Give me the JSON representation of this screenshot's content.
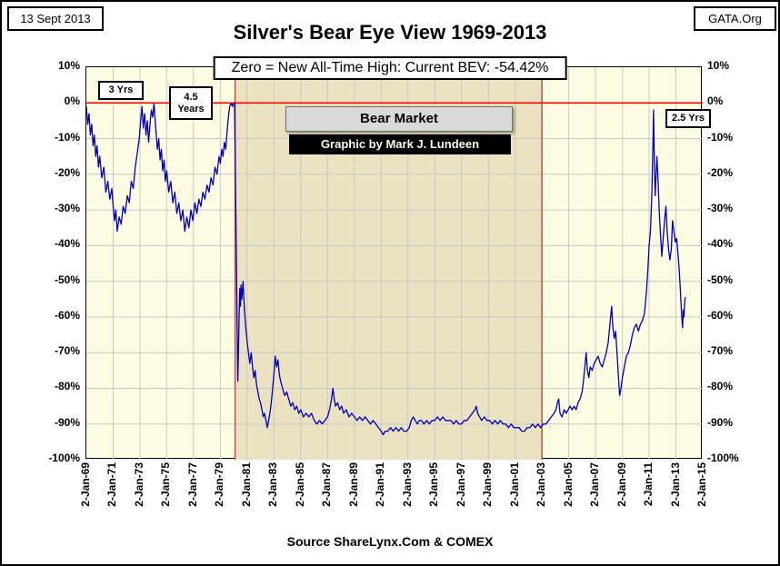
{
  "header": {
    "date_stamp": "13 Sept 2013",
    "org": "GATA.Org",
    "title": "Silver's Bear Eye View 1969-2013",
    "subtitle": "Zero = New All-Time High: Current BEV: -54.42%"
  },
  "annotations": {
    "three_yrs": "3 Yrs",
    "four_half_years": "4.5 Years",
    "bear_market": "Bear Market",
    "credit": "Graphic by Mark J. Lundeen",
    "two_half_yrs": "2.5 Yrs"
  },
  "footer": {
    "source": "Source ShareLynx.Com & COMEX"
  },
  "chart_data": {
    "type": "line",
    "title": "Silver's Bear Eye View 1969-2013",
    "subtitle": "Zero = New All-Time High: Current BEV: -54.42%",
    "series_name": "Silver Bear's Eye View (% below all-time high)",
    "x_unit": "date (decimal year)",
    "y_unit": "percent below all-time high",
    "xlim": [
      1969,
      2015
    ],
    "ylim": [
      -100,
      10
    ],
    "grid": true,
    "current_bev": -54.42,
    "zero_line_value": 0,
    "bear_market_band": {
      "from_year": 1980.1,
      "to_year": 2003.0
    },
    "x_tick_years": [
      1969,
      1971,
      1973,
      1975,
      1977,
      1979,
      1981,
      1983,
      1985,
      1987,
      1989,
      1991,
      1993,
      1995,
      1997,
      1999,
      2001,
      2003,
      2005,
      2007,
      2009,
      2011,
      2013,
      2015
    ],
    "x_tick_labels": [
      "2-Jan-69",
      "2-Jan-71",
      "2-Jan-73",
      "2-Jan-75",
      "2-Jan-77",
      "2-Jan-79",
      "2-Jan-81",
      "2-Jan-83",
      "2-Jan-85",
      "2-Jan-87",
      "2-Jan-89",
      "2-Jan-91",
      "2-Jan-93",
      "2-Jan-95",
      "2-Jan-97",
      "2-Jan-99",
      "2-Jan-01",
      "2-Jan-03",
      "2-Jan-05",
      "2-Jan-07",
      "2-Jan-09",
      "2-Jan-11",
      "2-Jan-13",
      "2-Jan-15"
    ],
    "y_ticks": [
      10,
      0,
      -10,
      -20,
      -30,
      -40,
      -50,
      -60,
      -70,
      -80,
      -90,
      -100
    ],
    "y_tick_labels": [
      "10%",
      "0%",
      "-10%",
      "-20%",
      "-30%",
      "-40%",
      "-50%",
      "-60%",
      "-70%",
      "-80%",
      "-90%",
      "-100%"
    ],
    "colors": {
      "line": "#0000B8",
      "zero_line": "#FF0000",
      "plot_bg": "#FDFCE2",
      "band_bg": "#EAE2C0",
      "band_border": "#C0504D",
      "grid": "#C8C8C8"
    },
    "points": [
      [
        1969.0,
        -1
      ],
      [
        1969.1,
        -6
      ],
      [
        1969.2,
        -3
      ],
      [
        1969.3,
        -9
      ],
      [
        1969.4,
        -6
      ],
      [
        1969.5,
        -12
      ],
      [
        1969.6,
        -9
      ],
      [
        1969.7,
        -15
      ],
      [
        1969.8,
        -12
      ],
      [
        1969.9,
        -18
      ],
      [
        1970.0,
        -15
      ],
      [
        1970.15,
        -21
      ],
      [
        1970.3,
        -18
      ],
      [
        1970.45,
        -25
      ],
      [
        1970.6,
        -22
      ],
      [
        1970.75,
        -27
      ],
      [
        1970.9,
        -24
      ],
      [
        1971.0,
        -29
      ],
      [
        1971.1,
        -33
      ],
      [
        1971.2,
        -30
      ],
      [
        1971.3,
        -36
      ],
      [
        1971.45,
        -32
      ],
      [
        1971.6,
        -34
      ],
      [
        1971.75,
        -29
      ],
      [
        1971.9,
        -31
      ],
      [
        1972.05,
        -26
      ],
      [
        1972.2,
        -28
      ],
      [
        1972.35,
        -22
      ],
      [
        1972.5,
        -24
      ],
      [
        1972.65,
        -18
      ],
      [
        1972.8,
        -14
      ],
      [
        1972.95,
        -10
      ],
      [
        1973.05,
        -5
      ],
      [
        1973.15,
        -1
      ],
      [
        1973.25,
        -7
      ],
      [
        1973.35,
        -3
      ],
      [
        1973.45,
        -9
      ],
      [
        1973.55,
        -5
      ],
      [
        1973.65,
        -11
      ],
      [
        1973.75,
        -6
      ],
      [
        1973.85,
        -2
      ],
      [
        1973.95,
        -4
      ],
      [
        1974.05,
        0
      ],
      [
        1974.1,
        -3
      ],
      [
        1974.2,
        -8
      ],
      [
        1974.3,
        -13
      ],
      [
        1974.4,
        -10
      ],
      [
        1974.5,
        -16
      ],
      [
        1974.6,
        -13
      ],
      [
        1974.7,
        -19
      ],
      [
        1974.8,
        -16
      ],
      [
        1974.9,
        -22
      ],
      [
        1975.0,
        -19
      ],
      [
        1975.15,
        -25
      ],
      [
        1975.3,
        -22
      ],
      [
        1975.45,
        -28
      ],
      [
        1975.6,
        -25
      ],
      [
        1975.75,
        -31
      ],
      [
        1975.9,
        -28
      ],
      [
        1976.05,
        -33
      ],
      [
        1976.2,
        -30
      ],
      [
        1976.35,
        -36
      ],
      [
        1976.5,
        -32
      ],
      [
        1976.65,
        -35
      ],
      [
        1976.8,
        -30
      ],
      [
        1976.95,
        -33
      ],
      [
        1977.1,
        -28
      ],
      [
        1977.25,
        -31
      ],
      [
        1977.4,
        -27
      ],
      [
        1977.55,
        -29
      ],
      [
        1977.7,
        -25
      ],
      [
        1977.85,
        -27
      ],
      [
        1978.0,
        -23
      ],
      [
        1978.15,
        -25
      ],
      [
        1978.3,
        -21
      ],
      [
        1978.45,
        -23
      ],
      [
        1978.6,
        -18
      ],
      [
        1978.75,
        -20
      ],
      [
        1978.9,
        -15
      ],
      [
        1979.0,
        -17
      ],
      [
        1979.1,
        -13
      ],
      [
        1979.2,
        -15
      ],
      [
        1979.3,
        -11
      ],
      [
        1979.4,
        -13
      ],
      [
        1979.5,
        -8
      ],
      [
        1979.6,
        -4
      ],
      [
        1979.7,
        -1
      ],
      [
        1979.8,
        0
      ],
      [
        1979.9,
        -1
      ],
      [
        1980.0,
        0
      ],
      [
        1980.05,
        0
      ],
      [
        1980.1,
        -12
      ],
      [
        1980.15,
        -28
      ],
      [
        1980.2,
        -45
      ],
      [
        1980.25,
        -62
      ],
      [
        1980.3,
        -78
      ],
      [
        1980.35,
        -70
      ],
      [
        1980.4,
        -60
      ],
      [
        1980.45,
        -52
      ],
      [
        1980.5,
        -57
      ],
      [
        1980.55,
        -51
      ],
      [
        1980.6,
        -55
      ],
      [
        1980.7,
        -50
      ],
      [
        1980.8,
        -58
      ],
      [
        1980.9,
        -63
      ],
      [
        1981.0,
        -67
      ],
      [
        1981.1,
        -70
      ],
      [
        1981.2,
        -73
      ],
      [
        1981.3,
        -70
      ],
      [
        1981.4,
        -74
      ],
      [
        1981.5,
        -77
      ],
      [
        1981.6,
        -75
      ],
      [
        1981.7,
        -79
      ],
      [
        1981.8,
        -81
      ],
      [
        1981.9,
        -83
      ],
      [
        1982.0,
        -84
      ],
      [
        1982.1,
        -86
      ],
      [
        1982.2,
        -88
      ],
      [
        1982.3,
        -87
      ],
      [
        1982.4,
        -89
      ],
      [
        1982.5,
        -91
      ],
      [
        1982.6,
        -89
      ],
      [
        1982.7,
        -87
      ],
      [
        1982.8,
        -84
      ],
      [
        1982.9,
        -80
      ],
      [
        1983.0,
        -76
      ],
      [
        1983.1,
        -71
      ],
      [
        1983.2,
        -74
      ],
      [
        1983.3,
        -72
      ],
      [
        1983.4,
        -76
      ],
      [
        1983.5,
        -78
      ],
      [
        1983.65,
        -80
      ],
      [
        1983.8,
        -82
      ],
      [
        1983.95,
        -81
      ],
      [
        1984.1,
        -83
      ],
      [
        1984.25,
        -85
      ],
      [
        1984.4,
        -84
      ],
      [
        1984.55,
        -86
      ],
      [
        1984.7,
        -85
      ],
      [
        1984.85,
        -87
      ],
      [
        1985.0,
        -86
      ],
      [
        1985.2,
        -88
      ],
      [
        1985.4,
        -87
      ],
      [
        1985.6,
        -88
      ],
      [
        1985.8,
        -87
      ],
      [
        1986.0,
        -89
      ],
      [
        1986.2,
        -90
      ],
      [
        1986.4,
        -89
      ],
      [
        1986.6,
        -90
      ],
      [
        1986.8,
        -89
      ],
      [
        1987.0,
        -88
      ],
      [
        1987.15,
        -86
      ],
      [
        1987.3,
        -83
      ],
      [
        1987.4,
        -80
      ],
      [
        1987.5,
        -83
      ],
      [
        1987.6,
        -85
      ],
      [
        1987.75,
        -84
      ],
      [
        1987.9,
        -86
      ],
      [
        1988.05,
        -85
      ],
      [
        1988.2,
        -87
      ],
      [
        1988.4,
        -86
      ],
      [
        1988.6,
        -88
      ],
      [
        1988.8,
        -87
      ],
      [
        1989.0,
        -88
      ],
      [
        1989.2,
        -89
      ],
      [
        1989.4,
        -88
      ],
      [
        1989.6,
        -89
      ],
      [
        1989.8,
        -88
      ],
      [
        1990.0,
        -89
      ],
      [
        1990.2,
        -90
      ],
      [
        1990.4,
        -89
      ],
      [
        1990.6,
        -90
      ],
      [
        1990.8,
        -91
      ],
      [
        1991.0,
        -92
      ],
      [
        1991.15,
        -93
      ],
      [
        1991.3,
        -92
      ],
      [
        1991.5,
        -92
      ],
      [
        1991.7,
        -91
      ],
      [
        1991.9,
        -92
      ],
      [
        1992.1,
        -91
      ],
      [
        1992.3,
        -92
      ],
      [
        1992.5,
        -91
      ],
      [
        1992.7,
        -92
      ],
      [
        1992.9,
        -92
      ],
      [
        1993.1,
        -91
      ],
      [
        1993.25,
        -89
      ],
      [
        1993.4,
        -88
      ],
      [
        1993.55,
        -89
      ],
      [
        1993.7,
        -90
      ],
      [
        1993.85,
        -89
      ],
      [
        1994.0,
        -89
      ],
      [
        1994.2,
        -90
      ],
      [
        1994.4,
        -89
      ],
      [
        1994.6,
        -90
      ],
      [
        1994.8,
        -89
      ],
      [
        1995.0,
        -89
      ],
      [
        1995.2,
        -88
      ],
      [
        1995.4,
        -89
      ],
      [
        1995.6,
        -88
      ],
      [
        1995.8,
        -89
      ],
      [
        1996.0,
        -89
      ],
      [
        1996.2,
        -89
      ],
      [
        1996.4,
        -90
      ],
      [
        1996.6,
        -89
      ],
      [
        1996.8,
        -90
      ],
      [
        1997.0,
        -90
      ],
      [
        1997.2,
        -89
      ],
      [
        1997.4,
        -89
      ],
      [
        1997.6,
        -88
      ],
      [
        1997.8,
        -87
      ],
      [
        1998.0,
        -86
      ],
      [
        1998.1,
        -85
      ],
      [
        1998.2,
        -87
      ],
      [
        1998.35,
        -88
      ],
      [
        1998.5,
        -89
      ],
      [
        1998.7,
        -88
      ],
      [
        1998.9,
        -89
      ],
      [
        1999.1,
        -89
      ],
      [
        1999.3,
        -90
      ],
      [
        1999.5,
        -89
      ],
      [
        1999.7,
        -90
      ],
      [
        1999.9,
        -89
      ],
      [
        2000.1,
        -90
      ],
      [
        2000.3,
        -90
      ],
      [
        2000.5,
        -91
      ],
      [
        2000.7,
        -90
      ],
      [
        2000.9,
        -91
      ],
      [
        2001.1,
        -91
      ],
      [
        2001.3,
        -91
      ],
      [
        2001.5,
        -92
      ],
      [
        2001.7,
        -92
      ],
      [
        2001.9,
        -91
      ],
      [
        2002.1,
        -91
      ],
      [
        2002.3,
        -90
      ],
      [
        2002.5,
        -91
      ],
      [
        2002.7,
        -90
      ],
      [
        2002.9,
        -91
      ],
      [
        2003.1,
        -90
      ],
      [
        2003.3,
        -90
      ],
      [
        2003.5,
        -89
      ],
      [
        2003.7,
        -88
      ],
      [
        2003.9,
        -87
      ],
      [
        2004.05,
        -86
      ],
      [
        2004.15,
        -84
      ],
      [
        2004.25,
        -83
      ],
      [
        2004.35,
        -87
      ],
      [
        2004.5,
        -88
      ],
      [
        2004.65,
        -86
      ],
      [
        2004.8,
        -87
      ],
      [
        2004.95,
        -86
      ],
      [
        2005.1,
        -85
      ],
      [
        2005.25,
        -86
      ],
      [
        2005.4,
        -85
      ],
      [
        2005.55,
        -86
      ],
      [
        2005.7,
        -84
      ],
      [
        2005.85,
        -83
      ],
      [
        2006.0,
        -81
      ],
      [
        2006.1,
        -78
      ],
      [
        2006.2,
        -74
      ],
      [
        2006.3,
        -70
      ],
      [
        2006.4,
        -75
      ],
      [
        2006.5,
        -77
      ],
      [
        2006.6,
        -74
      ],
      [
        2006.75,
        -75
      ],
      [
        2006.9,
        -73
      ],
      [
        2007.05,
        -72
      ],
      [
        2007.2,
        -71
      ],
      [
        2007.35,
        -73
      ],
      [
        2007.5,
        -74
      ],
      [
        2007.65,
        -72
      ],
      [
        2007.8,
        -70
      ],
      [
        2007.95,
        -67
      ],
      [
        2008.1,
        -61
      ],
      [
        2008.2,
        -57
      ],
      [
        2008.3,
        -63
      ],
      [
        2008.4,
        -66
      ],
      [
        2008.5,
        -64
      ],
      [
        2008.6,
        -70
      ],
      [
        2008.7,
        -76
      ],
      [
        2008.8,
        -82
      ],
      [
        2008.9,
        -80
      ],
      [
        2009.0,
        -77
      ],
      [
        2009.15,
        -74
      ],
      [
        2009.3,
        -71
      ],
      [
        2009.45,
        -70
      ],
      [
        2009.6,
        -68
      ],
      [
        2009.75,
        -65
      ],
      [
        2009.9,
        -63
      ],
      [
        2010.05,
        -62
      ],
      [
        2010.2,
        -64
      ],
      [
        2010.35,
        -62
      ],
      [
        2010.5,
        -61
      ],
      [
        2010.65,
        -59
      ],
      [
        2010.8,
        -53
      ],
      [
        2010.9,
        -47
      ],
      [
        2011.0,
        -40
      ],
      [
        2011.1,
        -36
      ],
      [
        2011.2,
        -26
      ],
      [
        2011.28,
        -12
      ],
      [
        2011.33,
        -2
      ],
      [
        2011.4,
        -18
      ],
      [
        2011.45,
        -26
      ],
      [
        2011.5,
        -22
      ],
      [
        2011.58,
        -15
      ],
      [
        2011.65,
        -20
      ],
      [
        2011.75,
        -30
      ],
      [
        2011.85,
        -37
      ],
      [
        2011.95,
        -43
      ],
      [
        2012.05,
        -38
      ],
      [
        2012.15,
        -33
      ],
      [
        2012.25,
        -29
      ],
      [
        2012.35,
        -36
      ],
      [
        2012.45,
        -41
      ],
      [
        2012.55,
        -44
      ],
      [
        2012.65,
        -41
      ],
      [
        2012.75,
        -33
      ],
      [
        2012.85,
        -36
      ],
      [
        2012.95,
        -39
      ],
      [
        2013.05,
        -38
      ],
      [
        2013.15,
        -42
      ],
      [
        2013.25,
        -47
      ],
      [
        2013.35,
        -54
      ],
      [
        2013.45,
        -61
      ],
      [
        2013.5,
        -63
      ],
      [
        2013.55,
        -58
      ],
      [
        2013.6,
        -60
      ],
      [
        2013.65,
        -56
      ],
      [
        2013.7,
        -54.42
      ]
    ]
  }
}
